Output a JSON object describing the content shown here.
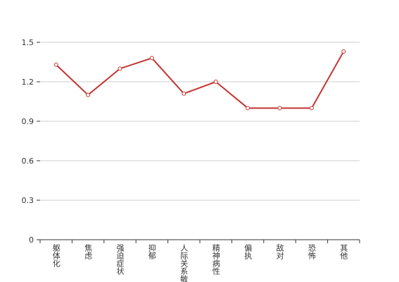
{
  "chart_data": {
    "type": "line",
    "categories": [
      "躯体化",
      "焦虑",
      "强迫症状",
      "抑郁",
      "人际关系敏感",
      "精神病性",
      "偏执",
      "敌对",
      "恐怖",
      "其他"
    ],
    "values": [
      1.33,
      1.1,
      1.3,
      1.38,
      1.11,
      1.2,
      1.0,
      1.0,
      1.0,
      1.43
    ],
    "color": "#c23531",
    "ylim": [
      0,
      1.5
    ],
    "yticks": [
      0,
      0.3,
      0.6,
      0.9,
      1.2,
      1.5
    ],
    "grid": true
  }
}
